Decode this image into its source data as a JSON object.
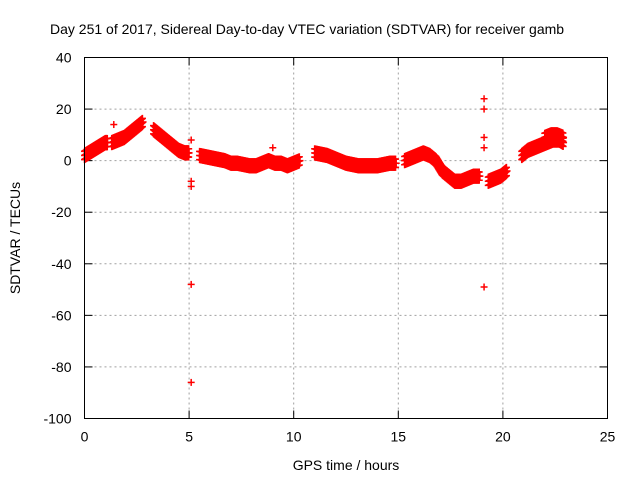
{
  "chart_data": {
    "type": "scatter",
    "title": "Day 251 of 2017, Sidereal Day-to-day VTEC variation (SDTVAR) for receiver gamb",
    "xlabel": "GPS time / hours",
    "ylabel": "SDTVAR / TECUs",
    "xlim": [
      0,
      25
    ],
    "ylim": [
      -100,
      40
    ],
    "xticks": [
      0,
      5,
      10,
      15,
      20,
      25
    ],
    "yticks": [
      -100,
      -80,
      -60,
      -40,
      -20,
      0,
      20,
      40
    ],
    "grid": true,
    "marker": "plus",
    "color": "#ff0000",
    "series": [
      {
        "name": "SDTVAR",
        "segments": [
          {
            "x": [
              0.0,
              0.2,
              0.4,
              0.6,
              0.8,
              1.0,
              1.1
            ],
            "y": [
              2,
              3,
              4,
              5,
              6,
              7,
              7
            ]
          },
          {
            "x": [
              1.3,
              1.6,
              1.9,
              2.2,
              2.5,
              2.8
            ],
            "y": [
              7,
              8,
              9,
              11,
              13,
              15
            ]
          },
          {
            "x": [
              3.3,
              3.6,
              3.9,
              4.2,
              4.5,
              4.8,
              5.0
            ],
            "y": [
              12,
              10,
              8,
              6,
              4,
              3,
              3
            ]
          },
          {
            "x": [
              5.5,
              5.8,
              6.1,
              6.4,
              6.7,
              7.0,
              7.3,
              7.6,
              7.9,
              8.2,
              8.5,
              8.8,
              9.1,
              9.4,
              9.7,
              10.0,
              10.3
            ],
            "y": [
              2,
              1.5,
              1,
              0.5,
              0,
              -1,
              -1,
              -1.5,
              -2,
              -2,
              -1,
              0,
              -1,
              -1,
              -2,
              -1,
              0
            ]
          },
          {
            "x": [
              11.0,
              11.3,
              11.6,
              11.9,
              12.2,
              12.5,
              12.8,
              13.1,
              13.4,
              13.7,
              14.0,
              14.3,
              14.6,
              14.9
            ],
            "y": [
              3,
              2.5,
              2,
              1,
              0,
              -1,
              -1.5,
              -2,
              -2,
              -2,
              -2,
              -1.5,
              -1,
              -1
            ]
          },
          {
            "x": [
              15.3,
              15.6,
              15.9,
              16.2,
              16.5,
              16.8,
              17.1,
              17.4,
              17.7,
              18.0,
              18.3,
              18.6,
              18.9
            ],
            "y": [
              0,
              1,
              2,
              3,
              2,
              0,
              -4,
              -6,
              -8,
              -8,
              -7,
              -6,
              -6
            ]
          },
          {
            "x": [
              19.3,
              19.6,
              19.9,
              20.2
            ],
            "y": [
              -8,
              -7,
              -6,
              -4
            ]
          },
          {
            "x": [
              20.9,
              21.2,
              21.5,
              21.8,
              22.1,
              22.4,
              22.7,
              22.9
            ],
            "y": [
              2,
              4,
              5,
              6,
              7,
              8,
              8,
              7
            ]
          },
          {
            "x": [
              22.0,
              22.3,
              22.6,
              22.9
            ],
            "y": [
              9,
              10,
              10,
              9
            ]
          }
        ],
        "points": [
          {
            "x": 1.4,
            "y": 14
          },
          {
            "x": 5.1,
            "y": 8
          },
          {
            "x": 5.1,
            "y": -8
          },
          {
            "x": 5.1,
            "y": -10
          },
          {
            "x": 5.1,
            "y": -48
          },
          {
            "x": 5.1,
            "y": -86
          },
          {
            "x": 9.0,
            "y": 5
          },
          {
            "x": 19.1,
            "y": 24
          },
          {
            "x": 19.1,
            "y": 20
          },
          {
            "x": 19.1,
            "y": 9
          },
          {
            "x": 19.1,
            "y": 5
          },
          {
            "x": 19.1,
            "y": -49
          }
        ]
      }
    ]
  }
}
